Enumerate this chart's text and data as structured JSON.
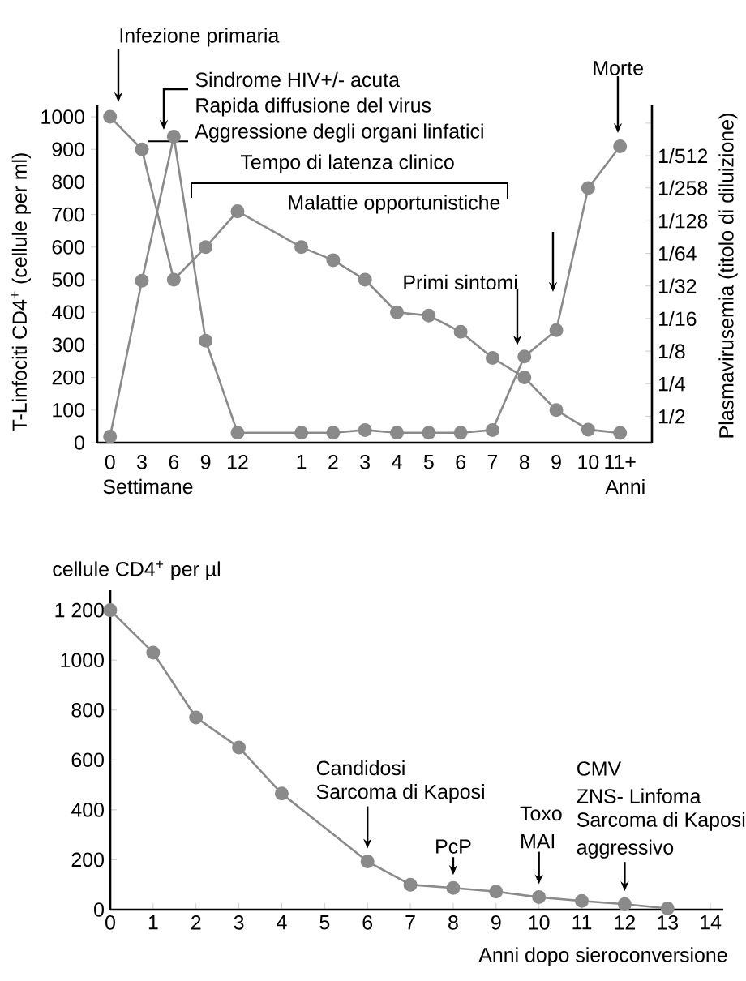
{
  "chart_data": [
    {
      "type": "line",
      "categories": [
        "0",
        "3",
        "6",
        "9",
        "12",
        null,
        "1",
        "2",
        "3",
        "4",
        "5",
        "6",
        "7",
        "8",
        "9",
        "10",
        "11+"
      ],
      "series": [
        {
          "color": "#8a8a8a",
          "values": [
            1000,
            900,
            500,
            600,
            710,
            null,
            600,
            560,
            500,
            400,
            390,
            340,
            260,
            200,
            100,
            40,
            30
          ]
        },
        {
          "color": "#8a8a8a",
          "axis": "y2",
          "values": [
            0.77,
            0.028,
            0.0013,
            0.1,
            0.71,
            null,
            0.71,
            0.71,
            0.67,
            0.71,
            0.71,
            0.71,
            0.67,
            0.14,
            0.08,
            0.0039,
            0.0016
          ]
        }
      ],
      "ylabel": "T-Linfociti CD4$^{+}$ (cellule per ml)",
      "y2label": "Plasmavirusemia (titolo di diluizione)",
      "ylim": [
        0,
        1035
      ],
      "yticks": [
        0,
        100,
        200,
        300,
        400,
        500,
        600,
        700,
        800,
        900,
        1000
      ],
      "y2lim": [
        0.877,
        0.00067
      ],
      "y2ticks": [
        {
          "value": 0.5,
          "label": "1/2"
        },
        {
          "value": 0.25,
          "label": "1/4"
        },
        {
          "value": 0.125,
          "label": "1/8"
        },
        {
          "value": 0.0625,
          "label": "1/16"
        },
        {
          "value": 0.03125,
          "label": "1/32"
        },
        {
          "value": 0.015625,
          "label": "1/64"
        },
        {
          "value": 0.0078125,
          "label": "1/128"
        },
        {
          "value": 0.003876,
          "label": "1/258"
        },
        {
          "value": 0.001953,
          "label": "1/512"
        },
        {
          "value": 0.000977,
          "label": null
        }
      ],
      "log": "y2",
      "marker": "circle",
      "annotations": [
        "Infezione primaria",
        "Sindrome HIV+/- acuta",
        "Rapida diffusione del virus",
        {
          "text": "Aggressione degli organi linfatici",
          "x": "6",
          "y": 925
        },
        "Tempo di latenza clinico",
        "Malattie  opportunistiche",
        "Primi sintomi",
        "Morte",
        "Settimane",
        "Anni"
      ]
    },
    {
      "type": "line",
      "x": [
        0,
        1,
        2,
        3,
        4,
        6,
        7,
        8,
        9,
        10,
        11,
        12,
        13
      ],
      "values": [
        1200,
        1030,
        770,
        650,
        465,
        193,
        100,
        87,
        72,
        50,
        35,
        22,
        5
      ],
      "color": "#8a8a8a",
      "xlim": [
        0,
        14.3
      ],
      "xticks": [
        0,
        1,
        2,
        3,
        4,
        5,
        6,
        7,
        8,
        9,
        10,
        11,
        12,
        13,
        14
      ],
      "ylim": [
        0,
        1280
      ],
      "yticks": [
        0,
        200,
        400,
        600,
        800,
        1000,
        {
          "value": 1200,
          "label": "1 200"
        }
      ],
      "xlabel": "Anni dopo sieroconversione",
      "ylabel": "cellule CD4$^{+}$ per µl",
      "marker": "circle",
      "annotations": [
        "Candidosi",
        {
          "text": "Sarcoma di Kaposi",
          "x": 6,
          "y": 193
        },
        {
          "text": "PcP",
          "x": 8,
          "y": 87
        },
        "Toxo",
        {
          "text": "MAI",
          "x": 10,
          "y": 50
        },
        "CMV",
        "ZNS- Linfoma",
        "Sarcoma di Kaposi",
        {
          "text": "aggressivo",
          "x": 12,
          "y": 22
        }
      ]
    }
  ]
}
